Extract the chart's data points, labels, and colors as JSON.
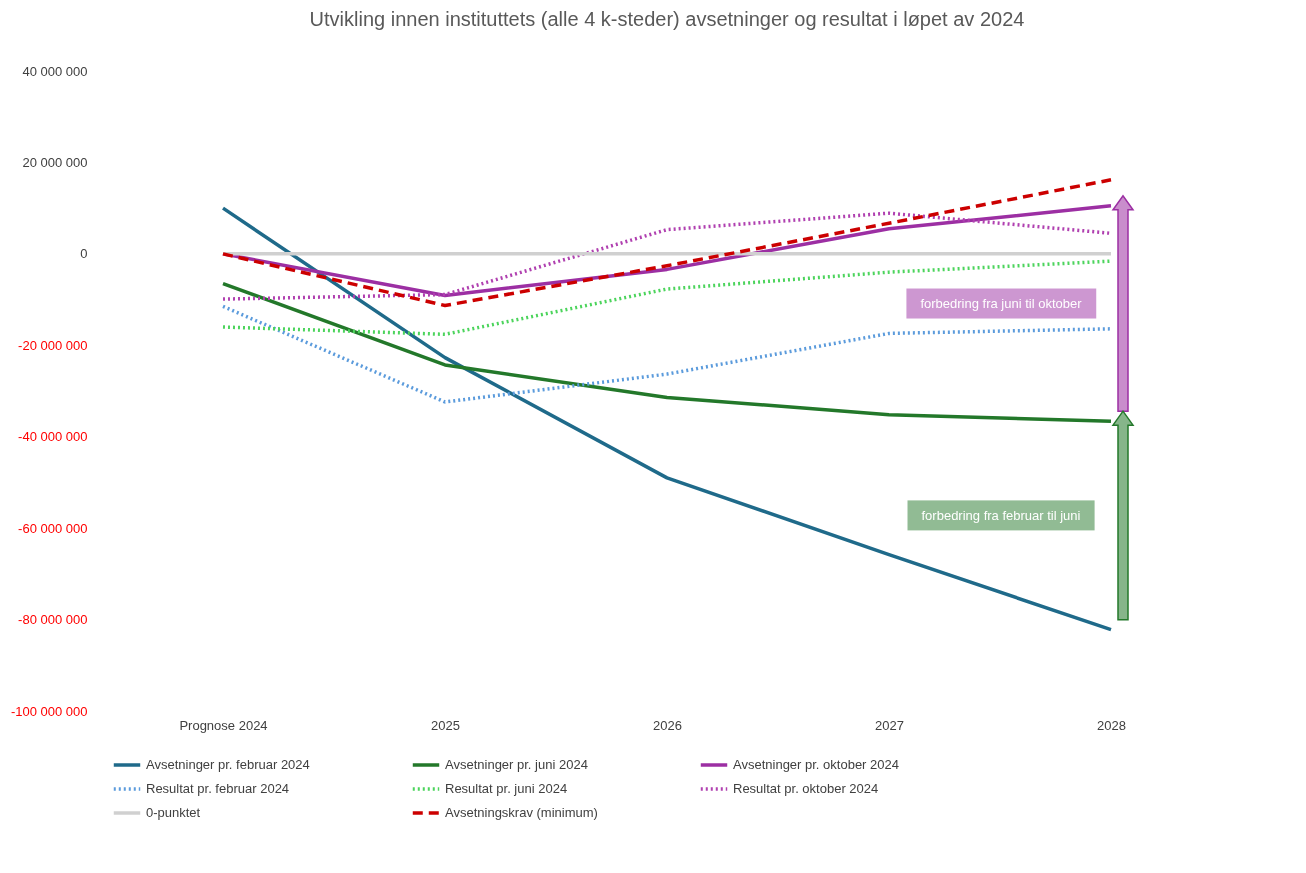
{
  "chart_data": {
    "type": "line",
    "title": "Utvikling innen instituttets (alle 4 k-steder) avsetninger og resultat i løpet av 2024",
    "categories": [
      "Prognose 2024",
      "2025",
      "2026",
      "2027",
      "2028"
    ],
    "series": [
      {
        "name": "Avsetninger pr. februar 2024",
        "color": "#1f6a8a",
        "line_style": "solid",
        "values": [
          10000000,
          -22700000,
          -49000000,
          -65800000,
          -82200000
        ]
      },
      {
        "name": "Avsetninger pr. juni 2024",
        "color": "#23782a",
        "line_style": "solid",
        "values": [
          -6500000,
          -24300000,
          -31400000,
          -35200000,
          -36600000
        ]
      },
      {
        "name": "Avsetninger pr. oktober 2024",
        "color": "#9c2fa3",
        "line_style": "solid",
        "values": [
          0,
          -9100000,
          -3400000,
          5500000,
          10500000
        ]
      },
      {
        "name": "Resultat pr. februar 2024",
        "color": "#5b9bdc",
        "line_style": "dotted",
        "values": [
          -11500000,
          -32400000,
          -26300000,
          -17400000,
          -16400000
        ]
      },
      {
        "name": "Resultat pr. juni 2024",
        "color": "#4cd45c",
        "line_style": "dotted",
        "values": [
          -16000000,
          -17600000,
          -7700000,
          -4000000,
          -1600000
        ]
      },
      {
        "name": "Resultat pr. oktober 2024",
        "color": "#b040b0",
        "line_style": "dotted",
        "values": [
          -9900000,
          -8900000,
          5300000,
          8900000,
          4500000
        ]
      },
      {
        "name": "0-punktet",
        "color": "#d0d0d0",
        "line_style": "solid",
        "values": [
          0,
          0,
          0,
          0,
          0
        ]
      },
      {
        "name": "Avsetningskrav (minimum)",
        "color": "#cc0000",
        "line_style": "dashed",
        "values": [
          0,
          -11300000,
          -2600000,
          6700000,
          16200000
        ]
      }
    ],
    "ylim": [
      -100000000,
      40000000
    ],
    "yticks": [
      {
        "value": -100000000,
        "label": "-100 000 000"
      },
      {
        "value": -80000000,
        "label": "-80 000 000"
      },
      {
        "value": -60000000,
        "label": "-60 000 000"
      },
      {
        "value": -40000000,
        "label": "-40 000 000"
      },
      {
        "value": -20000000,
        "label": "-20 000 000"
      },
      {
        "value": 0,
        "label": "0"
      },
      {
        "value": 20000000,
        "label": "20 000 000"
      },
      {
        "value": 40000000,
        "label": "40 000 000"
      }
    ],
    "legend": "bottom",
    "annotations": [
      "forbedring fra juni til oktober",
      "forbedring fra februar til juni"
    ]
  }
}
